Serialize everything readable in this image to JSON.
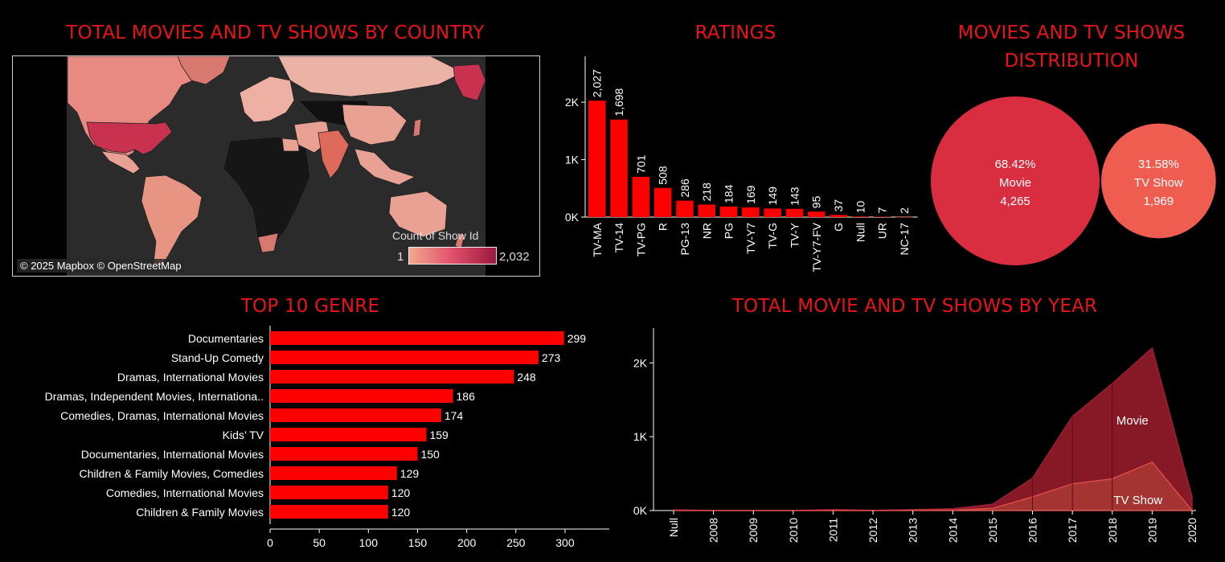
{
  "titles": {
    "map": "TOTAL MOVIES AND TV SHOWS BY COUNTRY",
    "ratings": "RATINGS",
    "distribution_line1": "MOVIES AND TV SHOWS",
    "distribution_line2": "DISTRIBUTION",
    "genre": "TOP 10 GENRE",
    "year": "TOTAL MOVIE AND TV SHOWS BY YEAR"
  },
  "map": {
    "attribution": "© 2025 Mapbox © OpenStreetMap",
    "legend_title": "Count of Show Id",
    "legend_min": "1",
    "legend_max": "2,032",
    "colors": {
      "low": "#f2a98f",
      "mid": "#e0506a",
      "high": "#9b1740",
      "land_no_data": "#1a1a1a",
      "water": "#2b2b2b"
    }
  },
  "chart_data": [
    {
      "type": "bar",
      "name": "ratings",
      "categories": [
        "TV-MA",
        "TV-14",
        "TV-PG",
        "R",
        "PG-13",
        "NR",
        "PG",
        "TV-Y7",
        "TV-G",
        "TV-Y",
        "TV-Y7-FV",
        "G",
        "Null",
        "UR",
        "NC-17"
      ],
      "values": [
        2027,
        1698,
        701,
        508,
        286,
        218,
        184,
        169,
        149,
        143,
        95,
        37,
        10,
        7,
        2
      ],
      "value_labels": [
        "2,027",
        "1,698",
        "701",
        "508",
        "286",
        "218",
        "184",
        "169",
        "149",
        "143",
        "95",
        "37",
        "10",
        "7",
        "2"
      ],
      "yticks": [
        {
          "value": 0,
          "label": "0K"
        },
        {
          "value": 1000,
          "label": "1K"
        },
        {
          "value": 2000,
          "label": "2K"
        }
      ],
      "ylim": [
        0,
        2800
      ],
      "color": "#ff0000"
    },
    {
      "type": "bubble",
      "name": "distribution",
      "items": [
        {
          "label": "Movie",
          "value": 4265,
          "value_label": "4,265",
          "pct": "68.42%",
          "color": "#d92e3f"
        },
        {
          "label": "TV Show",
          "value": 1969,
          "value_label": "1,969",
          "pct": "31.58%",
          "color": "#ee5d50"
        }
      ]
    },
    {
      "type": "bar",
      "orientation": "horizontal",
      "name": "genre",
      "categories": [
        "Documentaries",
        "Stand-Up Comedy",
        "Dramas, International Movies",
        "Dramas, Independent Movies, Internationa..",
        "Comedies, Dramas, International Movies",
        "Kids’ TV",
        "Documentaries, International Movies",
        "Children & Family Movies, Comedies",
        "Comedies, International Movies",
        "Children & Family Movies"
      ],
      "values": [
        299,
        273,
        248,
        186,
        174,
        159,
        150,
        129,
        120,
        120
      ],
      "xticks": [
        0,
        50,
        100,
        150,
        200,
        250,
        300
      ],
      "xlim": [
        0,
        345
      ],
      "color": "#ff0000"
    },
    {
      "type": "area",
      "name": "year",
      "x": [
        "Null",
        "2008",
        "2009",
        "2010",
        "2011",
        "2012",
        "2013",
        "2014",
        "2015",
        "2016",
        "2017",
        "2018",
        "2019",
        "2020"
      ],
      "series": [
        {
          "name": "Movie",
          "values": [
            10,
            1,
            2,
            1,
            13,
            3,
            6,
            19,
            56,
            253,
            914,
            1290,
            1545,
            184
          ],
          "color": "#8f1a28"
        },
        {
          "name": "TV Show",
          "values": [
            0,
            0,
            0,
            0,
            0,
            0,
            5,
            6,
            30,
            185,
            361,
            429,
            656,
            0
          ],
          "color": "#b63a38"
        }
      ],
      "stacked": true,
      "yticks": [
        {
          "value": 0,
          "label": "0K"
        },
        {
          "value": 1000,
          "label": "1K"
        },
        {
          "value": 2000,
          "label": "2K"
        }
      ],
      "ylim": [
        0,
        2450
      ]
    }
  ]
}
